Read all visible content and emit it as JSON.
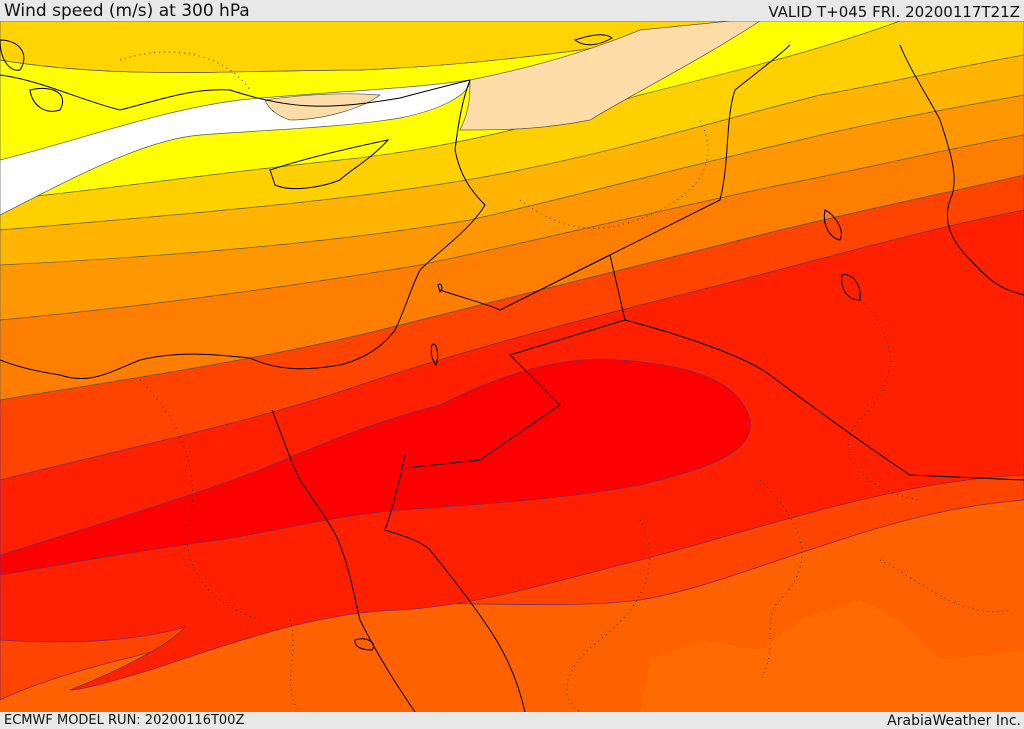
{
  "header": {
    "title": "Wind speed (m/s) at 300 hPa",
    "valid_time": "VALID T+045 FRI. 20200117T21Z"
  },
  "footer": {
    "model_run": "ECMWF MODEL RUN: 20200116T00Z",
    "credit": "ArabiaWeather Inc."
  },
  "map": {
    "type": "filled-contour wind speed map",
    "colors": {
      "calm": "#ffffff",
      "band_1": "#ffff00",
      "band_2": "#ffdd00",
      "band_3": "#ffbb00",
      "band_4": "#ff9900",
      "band_5": "#ff7700",
      "band_6": "#ff5500",
      "band_7": "#ff3300",
      "band_8": "#ff1a00",
      "core": "#ff0000",
      "land_tint": "#fddca7",
      "boundaries": "#000000"
    }
  }
}
